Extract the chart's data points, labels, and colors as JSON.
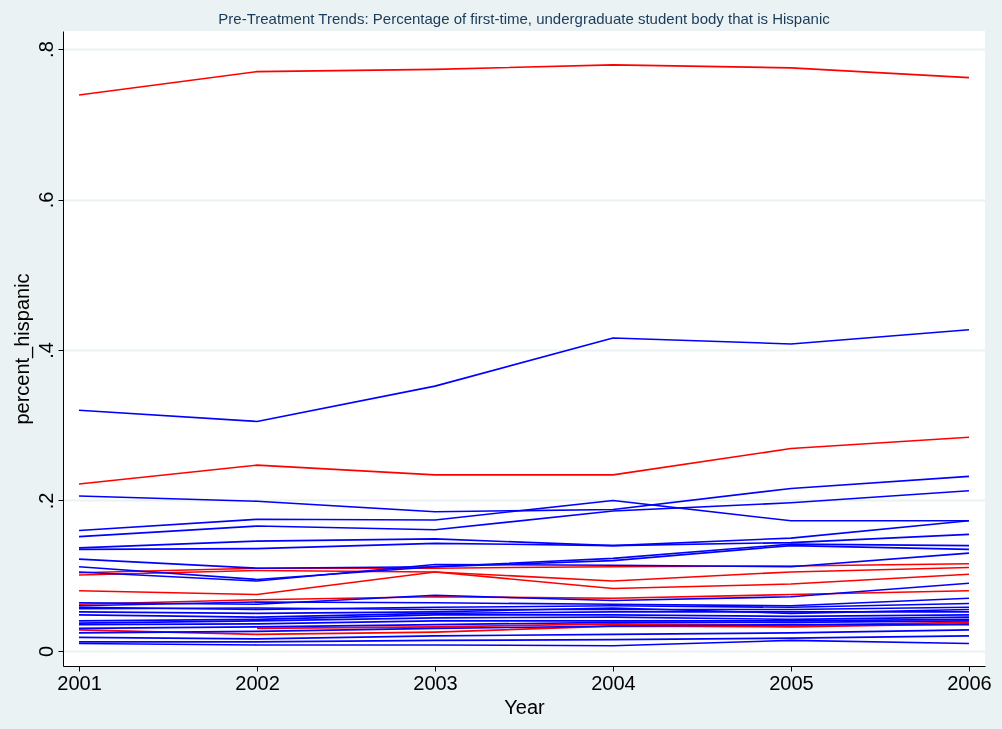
{
  "chart_data": {
    "type": "line",
    "title": "Pre-Treatment Trends: Percentage of first-time, undergraduate student body that is Hispanic",
    "xlabel": "Year",
    "ylabel": "percent_hispanic",
    "x": [
      2001,
      2002,
      2003,
      2004,
      2005,
      2006
    ],
    "xlim": [
      2000.91,
      2006.09
    ],
    "xticks": [
      2001,
      2002,
      2003,
      2004,
      2005,
      2006
    ],
    "ylim": [
      -0.02,
      0.824
    ],
    "yticks": [
      0,
      {
        "value": 0.2,
        "label": ".2"
      },
      {
        "value": 0.4,
        "label": ".4"
      },
      {
        "value": 0.6,
        "label": ".6"
      },
      {
        "value": 0.8,
        "label": ".8"
      }
    ],
    "grid": "y",
    "series": [
      {
        "color": "#ff0000",
        "values": [
          0.739,
          0.77,
          0.773,
          0.779,
          0.775,
          0.762
        ]
      },
      {
        "color": "#ff0000",
        "values": [
          0.222,
          0.247,
          0.234,
          0.234,
          0.269,
          0.284
        ]
      },
      {
        "color": "#ff0000",
        "values": [
          0.08,
          0.075,
          0.105,
          0.083,
          0.089,
          0.102
        ]
      },
      {
        "color": "#ff0000",
        "values": [
          0.101,
          0.107,
          0.105,
          0.093,
          0.105,
          0.111
        ]
      },
      {
        "color": "#ff0000",
        "values": [
          0.104,
          0.11,
          0.11,
          0.112,
          0.113,
          0.116
        ]
      },
      {
        "color": "#ff0000",
        "values": [
          0.062,
          0.068,
          0.072,
          0.07,
          0.075,
          0.08
        ]
      },
      {
        "color": "#ff0000",
        "values": [
          0.028,
          0.022,
          0.025,
          0.033,
          0.032,
          0.036
        ]
      },
      {
        "color": "#ff0000",
        "values": [
          null,
          0.03,
          0.032,
          0.036,
          0.034,
          0.038
        ]
      },
      {
        "color": "#0000ff",
        "values": [
          0.32,
          0.305,
          0.352,
          0.416,
          0.408,
          0.427
        ]
      },
      {
        "color": "#0000ff",
        "values": [
          0.206,
          0.199,
          0.185,
          0.188,
          0.216,
          0.232
        ]
      },
      {
        "color": "#0000ff",
        "values": [
          0.16,
          0.175,
          0.174,
          0.2,
          0.173,
          0.173
        ]
      },
      {
        "color": "#0000ff",
        "values": [
          0.152,
          0.166,
          0.161,
          0.186,
          0.197,
          0.213
        ]
      },
      {
        "color": "#0000ff",
        "values": [
          0.137,
          0.146,
          0.149,
          0.14,
          0.15,
          0.173
        ]
      },
      {
        "color": "#0000ff",
        "values": [
          0.135,
          0.136,
          0.143,
          0.14,
          0.144,
          0.155
        ]
      },
      {
        "color": "#0000ff",
        "values": [
          0.122,
          0.11,
          0.112,
          0.123,
          0.142,
          0.14
        ]
      },
      {
        "color": "#0000ff",
        "values": [
          0.112,
          0.095,
          0.112,
          0.12,
          0.14,
          0.135
        ]
      },
      {
        "color": "#0000ff",
        "values": [
          0.105,
          0.093,
          0.115,
          0.114,
          0.112,
          0.13
        ]
      },
      {
        "color": "#0000ff",
        "values": [
          0.064,
          0.062,
          0.074,
          0.067,
          0.072,
          0.09
        ]
      },
      {
        "color": "#0000ff",
        "values": [
          0.06,
          0.065,
          0.064,
          0.062,
          0.06,
          0.07
        ]
      },
      {
        "color": "#0000ff",
        "values": [
          0.058,
          0.055,
          0.058,
          0.06,
          0.058,
          0.063
        ]
      },
      {
        "color": "#0000ff",
        "values": [
          0.056,
          0.057,
          0.055,
          0.055,
          0.055,
          0.058
        ]
      },
      {
        "color": "#0000ff",
        "values": [
          0.052,
          0.05,
          0.052,
          0.057,
          0.05,
          0.055
        ]
      },
      {
        "color": "#0000ff",
        "values": [
          0.048,
          0.045,
          0.05,
          0.052,
          0.052,
          0.052
        ]
      },
      {
        "color": "#0000ff",
        "values": [
          0.04,
          0.042,
          0.048,
          0.048,
          0.046,
          0.048
        ]
      },
      {
        "color": "#0000ff",
        "values": [
          0.037,
          0.04,
          0.044,
          0.045,
          0.042,
          0.045
        ]
      },
      {
        "color": "#0000ff",
        "values": [
          0.035,
          0.036,
          0.04,
          0.04,
          0.04,
          0.042
        ]
      },
      {
        "color": "#0000ff",
        "values": [
          0.03,
          0.032,
          0.035,
          0.038,
          0.038,
          0.04
        ]
      },
      {
        "color": "#0000ff",
        "values": [
          0.024,
          0.026,
          0.03,
          0.033,
          0.035,
          0.035
        ]
      },
      {
        "color": "#0000ff",
        "values": [
          0.018,
          0.016,
          0.02,
          0.022,
          0.024,
          0.028
        ]
      },
      {
        "color": "#0000ff",
        "values": [
          0.012,
          0.012,
          0.014,
          0.015,
          0.017,
          0.02
        ]
      },
      {
        "color": "#0000ff",
        "values": [
          0.01,
          0.008,
          0.008,
          0.007,
          0.014,
          0.01
        ]
      }
    ]
  }
}
